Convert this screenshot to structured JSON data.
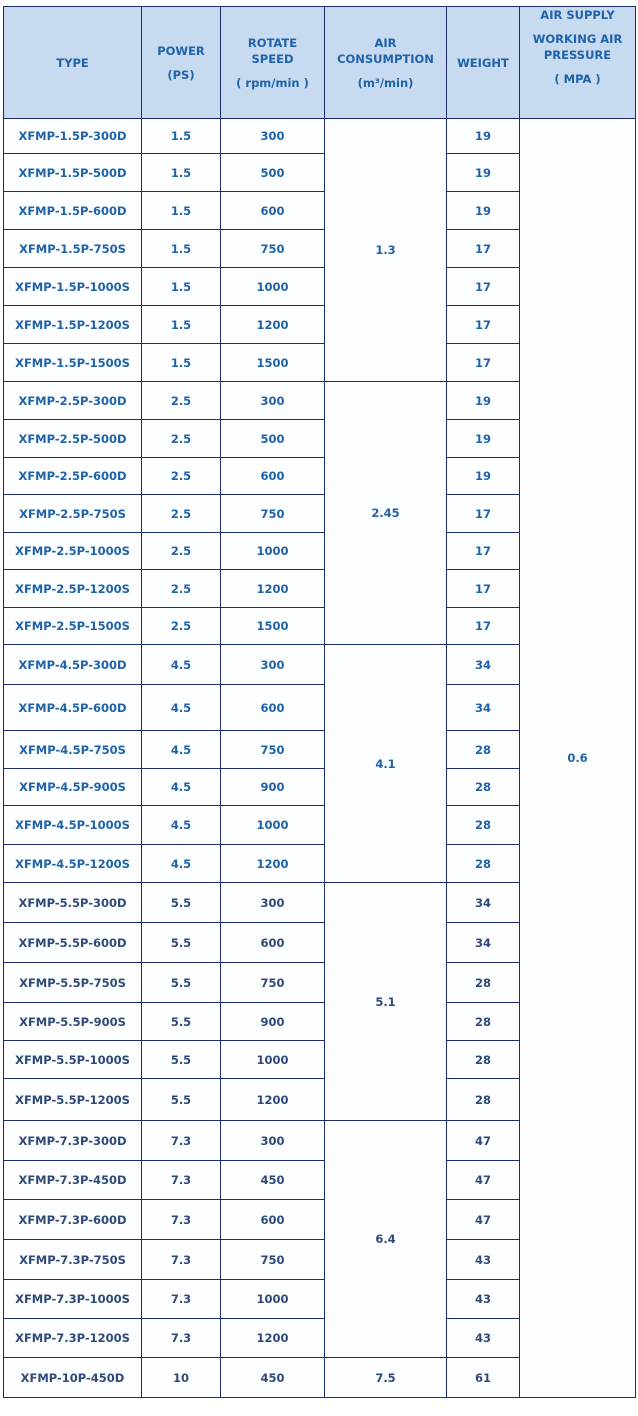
{
  "header": {
    "type": "TYPE",
    "power": "POWER",
    "power_unit": "(PS)",
    "speed": "ROTATE SPEED",
    "speed_unit": "( rpm/min )",
    "air": "AIR CONSUMPTION",
    "air_unit": "(m³/min)",
    "weight": "WEIGHT",
    "pressure_top": "AIR SUPPLY",
    "pressure": "WORKING AIR PRESSURE",
    "pressure_unit": "( MPA )"
  },
  "pressure_value": "0.6",
  "colors": {
    "header_bg": "#c8daf0",
    "text": "#1f62a8",
    "border": "#1c2a6e"
  },
  "groups": [
    {
      "air": "1.3",
      "rows": [
        {
          "type": "XFMP-1.5P-300D",
          "power": "1.5",
          "speed": "300",
          "weight": "19"
        },
        {
          "type": "XFMP-1.5P-500D",
          "power": "1.5",
          "speed": "500",
          "weight": "19"
        },
        {
          "type": "XFMP-1.5P-600D",
          "power": "1.5",
          "speed": "600",
          "weight": "19"
        },
        {
          "type": "XFMP-1.5P-750S",
          "power": "1.5",
          "speed": "750",
          "weight": "17"
        },
        {
          "type": "XFMP-1.5P-1000S",
          "power": "1.5",
          "speed": "1000",
          "weight": "17"
        },
        {
          "type": "XFMP-1.5P-1200S",
          "power": "1.5",
          "speed": "1200",
          "weight": "17"
        },
        {
          "type": "XFMP-1.5P-1500S",
          "power": "1.5",
          "speed": "1500",
          "weight": "17"
        }
      ]
    },
    {
      "air": "2.45",
      "rows": [
        {
          "type": "XFMP-2.5P-300D",
          "power": "2.5",
          "speed": "300",
          "weight": "19"
        },
        {
          "type": "XFMP-2.5P-500D",
          "power": "2.5",
          "speed": "500",
          "weight": "19"
        },
        {
          "type": "XFMP-2.5P-600D",
          "power": "2.5",
          "speed": "600",
          "weight": "19"
        },
        {
          "type": "XFMP-2.5P-750S",
          "power": "2.5",
          "speed": "750",
          "weight": "17"
        },
        {
          "type": "XFMP-2.5P-1000S",
          "power": "2.5",
          "speed": "1000",
          "weight": "17"
        },
        {
          "type": "XFMP-2.5P-1200S",
          "power": "2.5",
          "speed": "1200",
          "weight": "17"
        },
        {
          "type": "XFMP-2.5P-1500S",
          "power": "2.5",
          "speed": "1500",
          "weight": "17"
        }
      ]
    },
    {
      "air": "4.1",
      "rows": [
        {
          "type": "XFMP-4.5P-300D",
          "power": "4.5",
          "speed": "300",
          "weight": "34"
        },
        {
          "type": "XFMP-4.5P-600D",
          "power": "4.5",
          "speed": "600",
          "weight": "34"
        },
        {
          "type": "XFMP-4.5P-750S",
          "power": "4.5",
          "speed": "750",
          "weight": "28"
        },
        {
          "type": "XFMP-4.5P-900S",
          "power": "4.5",
          "speed": "900",
          "weight": "28"
        },
        {
          "type": "XFMP-4.5P-1000S",
          "power": "4.5",
          "speed": "1000",
          "weight": "28"
        },
        {
          "type": "XFMP-4.5P-1200S",
          "power": "4.5",
          "speed": "1200",
          "weight": "28"
        }
      ]
    },
    {
      "air": "5.1",
      "rows": [
        {
          "type": "XFMP-5.5P-300D",
          "power": "5.5",
          "speed": "300",
          "weight": "34"
        },
        {
          "type": "XFMP-5.5P-600D",
          "power": "5.5",
          "speed": "600",
          "weight": "34"
        },
        {
          "type": "XFMP-5.5P-750S",
          "power": "5.5",
          "speed": "750",
          "weight": "28"
        },
        {
          "type": "XFMP-5.5P-900S",
          "power": "5.5",
          "speed": "900",
          "weight": "28"
        },
        {
          "type": "XFMP-5.5P-1000S",
          "power": "5.5",
          "speed": "1000",
          "weight": "28"
        },
        {
          "type": "XFMP-5.5P-1200S",
          "power": "5.5",
          "speed": "1200",
          "weight": "28"
        }
      ]
    },
    {
      "air": "6.4",
      "rows": [
        {
          "type": "XFMP-7.3P-300D",
          "power": "7.3",
          "speed": "300",
          "weight": "47"
        },
        {
          "type": "XFMP-7.3P-450D",
          "power": "7.3",
          "speed": "450",
          "weight": "47"
        },
        {
          "type": "XFMP-7.3P-600D",
          "power": "7.3",
          "speed": "600",
          "weight": "47"
        },
        {
          "type": "XFMP-7.3P-750S",
          "power": "7.3",
          "speed": "750",
          "weight": "43"
        },
        {
          "type": "XFMP-7.3P-1000S",
          "power": "7.3",
          "speed": "1000",
          "weight": "43"
        },
        {
          "type": "XFMP-7.3P-1200S",
          "power": "7.3",
          "speed": "1200",
          "weight": "43"
        }
      ]
    },
    {
      "air": "7.5",
      "rows": [
        {
          "type": "XFMP-10P-450D",
          "power": "10",
          "speed": "450",
          "weight": "61"
        }
      ]
    }
  ]
}
